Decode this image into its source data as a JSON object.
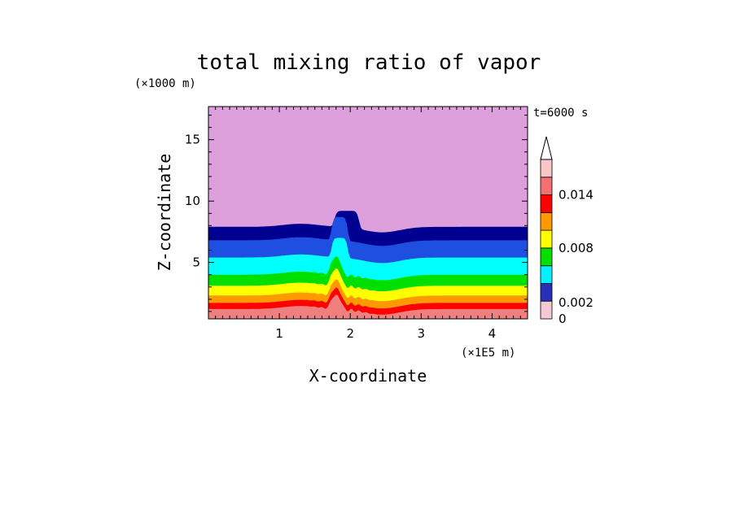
{
  "chart_data": {
    "type": "heatmap",
    "title": "total mixing ratio of vapor",
    "xlabel": "X-coordinate",
    "ylabel": "Z-coordinate",
    "x_unit": "(×1E5 m)",
    "y_unit": "(×1000 m)",
    "time_label": "t=6000 s",
    "xlim": [
      0,
      4.5
    ],
    "ylim": [
      0.4,
      17.7
    ],
    "x_ticks": [
      1,
      2,
      3,
      4
    ],
    "x_tick_labels": [
      "1",
      "2",
      "3",
      "4"
    ],
    "y_ticks": [
      5,
      10,
      15
    ],
    "y_tick_labels": [
      "5",
      "10",
      "15"
    ],
    "colorbar": {
      "levels": [
        0,
        0.001,
        0.002,
        0.004,
        0.006,
        0.008,
        0.01,
        0.012,
        0.014,
        0.016
      ],
      "colors": [
        "#F08080",
        "#FF7F00",
        "#FF0000",
        "#FFAA00",
        "#FFFF00",
        "#00FF00",
        "#00FFFF",
        "#1E90FF",
        "#0000CD",
        "#000090",
        "#DDA0DD"
      ],
      "tick_labels": [
        "0",
        "0.002",
        "0.008",
        "0.014"
      ],
      "swatches": [
        "#F3C9D4",
        "#2830B8",
        "#00F0FF",
        "#00E000",
        "#FFFF00",
        "#FF9900",
        "#FF0000",
        "#F57070",
        "#F8C8C8"
      ],
      "extend": "max"
    },
    "layers": [
      {
        "name": "upper",
        "color": "#DDA0DD",
        "base_z": 7.9
      },
      {
        "name": "band9",
        "color": "#000090",
        "base_z": 6.8
      },
      {
        "name": "band8",
        "color": "#1E4FE0",
        "base_z": 5.4
      },
      {
        "name": "band7",
        "color": "#00FFFF",
        "base_z": 4.0
      },
      {
        "name": "band6",
        "color": "#00E000",
        "base_z": 3.1
      },
      {
        "name": "band5",
        "color": "#FFFF00",
        "base_z": 2.3
      },
      {
        "name": "band4",
        "color": "#FF9900",
        "base_z": 1.7
      },
      {
        "name": "band3",
        "color": "#FF0000",
        "base_z": 1.2
      },
      {
        "name": "band2",
        "color": "#F08080",
        "base_z": 0.4
      }
    ]
  },
  "colors": {
    "background": "#ffffff",
    "axis": "#000000"
  }
}
